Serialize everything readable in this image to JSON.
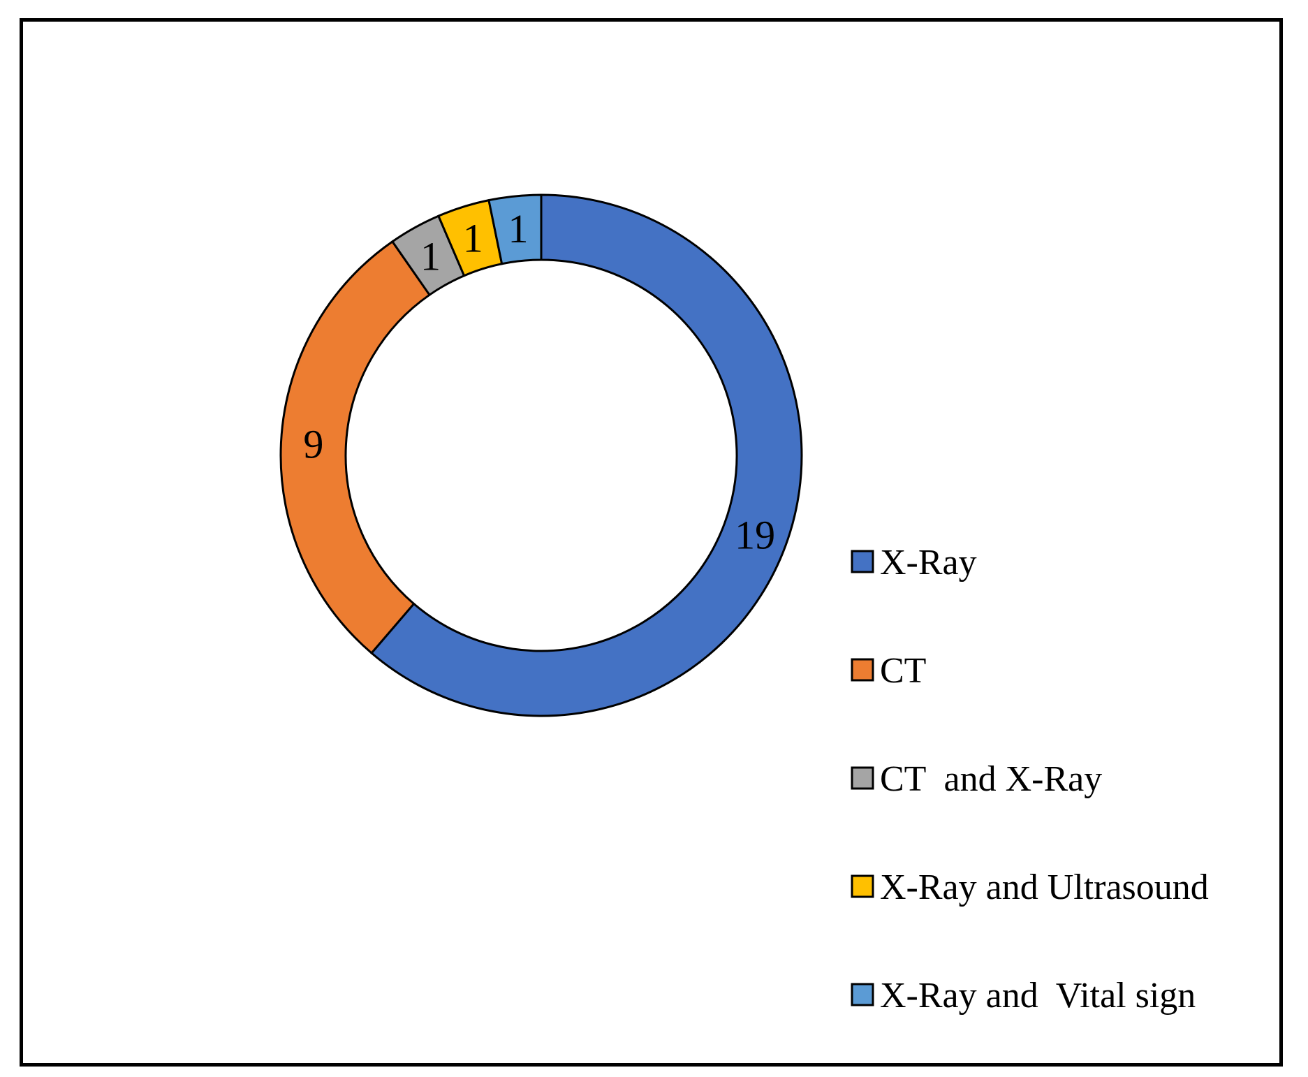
{
  "chart_data": {
    "type": "pie",
    "variant": "donut",
    "categories": [
      "X-Ray",
      "CT",
      "CT  and X-Ray",
      "X-Ray and Ultrasound",
      "X-Ray and  Vital sign"
    ],
    "values": [
      19,
      9,
      1,
      1,
      1
    ],
    "colors": [
      "#4472C4",
      "#ED7D31",
      "#A5A5A5",
      "#FFC000",
      "#5B9BD5"
    ],
    "data_labels": [
      "19",
      "9",
      "1",
      "1",
      "1"
    ],
    "legend_placement": "right",
    "title": ""
  }
}
